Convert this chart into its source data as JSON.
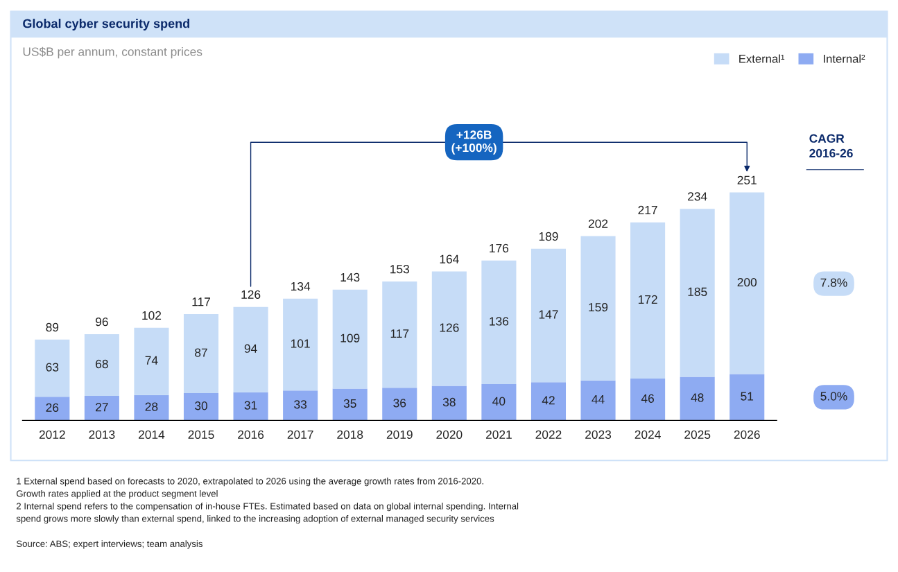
{
  "chart_data": {
    "type": "bar",
    "title": "Global cyber security spend",
    "subtitle": "US$B per annum, constant prices",
    "categories": [
      "2012",
      "2013",
      "2014",
      "2015",
      "2016",
      "2017",
      "2018",
      "2019",
      "2020",
      "2021",
      "2022",
      "2023",
      "2024",
      "2025",
      "2026"
    ],
    "series": [
      {
        "name": "Internal²",
        "color": "#8eabf2",
        "values": [
          26,
          27,
          28,
          30,
          31,
          33,
          35,
          36,
          38,
          40,
          42,
          44,
          46,
          48,
          51
        ]
      },
      {
        "name": "External¹",
        "color": "#c6dcf7",
        "values": [
          63,
          68,
          74,
          87,
          94,
          101,
          109,
          117,
          126,
          136,
          147,
          159,
          172,
          185,
          200
        ]
      }
    ],
    "stacked": true,
    "data_labels": true,
    "totals": [
      "89",
      "96",
      "102",
      "117",
      "126",
      "134",
      "143",
      "153",
      "164",
      "176",
      "189",
      "202",
      "217",
      "234",
      "251"
    ],
    "legend": "top right",
    "annotations": [
      "+126B\n(+100%)",
      "CAGR\n2016-26",
      "7.8%",
      "5.0%",
      "1 External spend based on forecasts to 2020, extrapolated to 2026 using the average growth rates from 2016-2020.\nGrowth rates applied at the product segment level\n2 Internal spend refers to the compensation of in-house FTEs. Estimated based on data on global internal spending. Internal\nspend grows more slowly than external spend, linked to the increasing adoption of external managed security services",
      "Source: ABS; expert interviews; team analysis"
    ]
  }
}
